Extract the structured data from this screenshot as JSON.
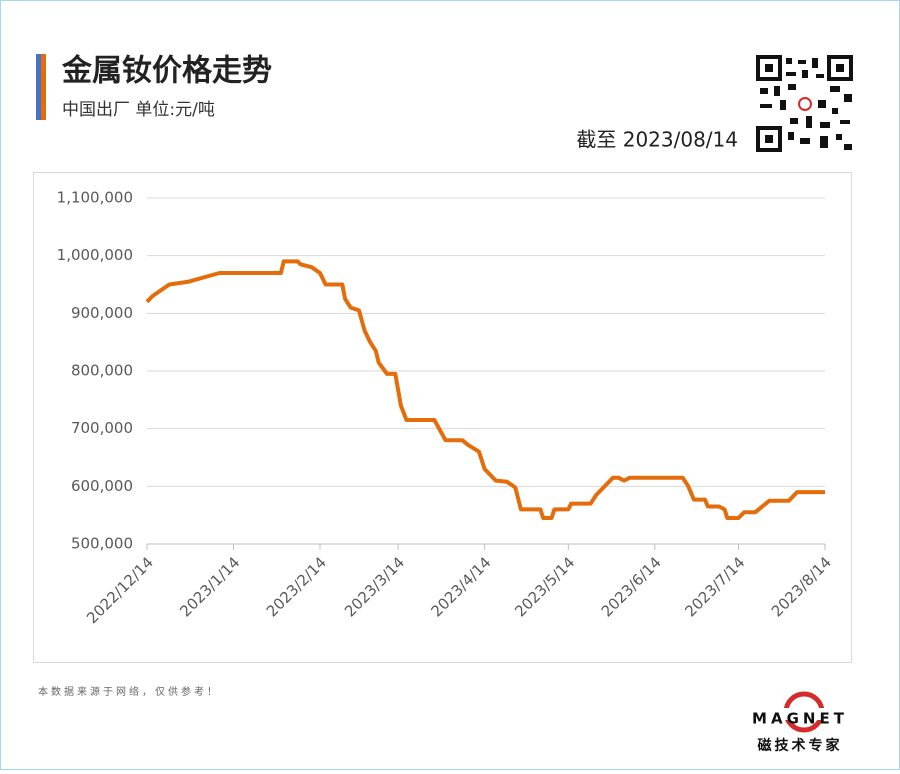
{
  "header": {
    "title": "金属钕价格走势",
    "subtitle": "中国出厂  单位:元/吨",
    "as_of": "截至 2023/08/14"
  },
  "chart_data": {
    "type": "line",
    "x": [
      "2022/12/14",
      "2022/12/16",
      "2022/12/22",
      "2022/12/29",
      "2023/1/9",
      "2023/1/31",
      "2023/2/1",
      "2023/2/6",
      "2023/2/7",
      "2023/2/11",
      "2023/2/14",
      "2023/2/16",
      "2023/2/22",
      "2023/2/23",
      "2023/2/25",
      "2023/2/28",
      "2023/3/2",
      "2023/3/4",
      "2023/3/6",
      "2023/3/7",
      "2023/3/10",
      "2023/3/13",
      "2023/3/15",
      "2023/3/17",
      "2023/3/27",
      "2023/3/31",
      "2023/4/6",
      "2023/4/8",
      "2023/4/12",
      "2023/4/14",
      "2023/4/18",
      "2023/4/22",
      "2023/4/25",
      "2023/4/27",
      "2023/5/4",
      "2023/5/5",
      "2023/5/8",
      "2023/5/9",
      "2023/5/14",
      "2023/5/15",
      "2023/5/22",
      "2023/5/24",
      "2023/5/30",
      "2023/6/1",
      "2023/6/3",
      "2023/6/5",
      "2023/6/24",
      "2023/6/26",
      "2023/6/28",
      "2023/7/2",
      "2023/7/3",
      "2023/7/7",
      "2023/7/9",
      "2023/7/10",
      "2023/7/14",
      "2023/7/16",
      "2023/7/20",
      "2023/7/25",
      "2023/8/1",
      "2023/8/4",
      "2023/8/14"
    ],
    "series": [
      {
        "color": "#e46c0a",
        "values": [
          920000,
          930000,
          950000,
          955000,
          970000,
          970000,
          990000,
          990000,
          985000,
          980000,
          970000,
          950000,
          950000,
          925000,
          910000,
          905000,
          870000,
          850000,
          835000,
          815000,
          795000,
          795000,
          740000,
          715000,
          715000,
          680000,
          680000,
          672000,
          660000,
          630000,
          610000,
          608000,
          598000,
          560000,
          560000,
          545000,
          545000,
          560000,
          560000,
          570000,
          570000,
          585000,
          615000,
          615000,
          610000,
          615000,
          615000,
          600000,
          577000,
          577000,
          565000,
          565000,
          560000,
          545000,
          545000,
          555000,
          555000,
          575000,
          575000,
          590000,
          590000
        ]
      }
    ],
    "xlim": [
      "2022/12/14",
      "2023/8/14"
    ],
    "xticks": [
      "2022/12/14",
      "2023/1/14",
      "2023/2/14",
      "2023/3/14",
      "2023/4/14",
      "2023/5/14",
      "2023/6/14",
      "2023/7/14",
      "2023/8/14"
    ],
    "ylim": [
      500000,
      1100000
    ],
    "yticks": [
      {
        "value": 500000,
        "label": "500,000"
      },
      {
        "value": 600000,
        "label": "600,000"
      },
      {
        "value": 700000,
        "label": "700,000"
      },
      {
        "value": 800000,
        "label": "800,000"
      },
      {
        "value": 900000,
        "label": "900,000"
      },
      {
        "value": 1000000,
        "label": "1,000,000"
      },
      {
        "value": 1100000,
        "label": "1,100,000"
      }
    ],
    "grid": true
  },
  "footer": {
    "note": "本数据来源于网络，仅供参考！",
    "logo": "MAGNET",
    "slogan": "磁技术专家"
  }
}
